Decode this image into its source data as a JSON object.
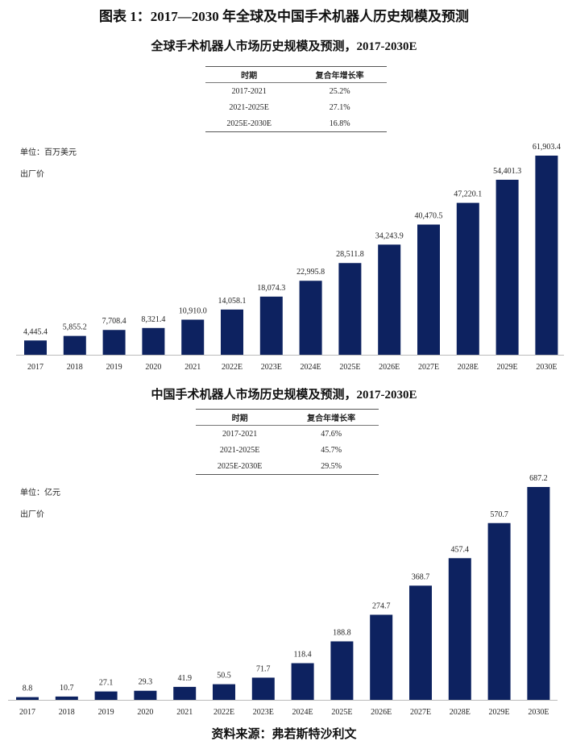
{
  "title": "图表 1：2017—2030 年全球及中国手术机器人历史规模及预测",
  "source": "资料来源：弗若斯特沙利文",
  "bar_color": "#0d2260",
  "chart_data": [
    {
      "type": "bar",
      "title": "全球手术机器人市场历史规模及预测，2017-2030E",
      "unit": "单位：百万美元",
      "price_basis": "出厂价",
      "cagr_table": {
        "headers": [
          "时期",
          "复合年增长率"
        ],
        "rows": [
          [
            "2017-2021",
            "25.2%"
          ],
          [
            "2021-2025E",
            "27.1%"
          ],
          [
            "2025E-2030E",
            "16.8%"
          ]
        ]
      },
      "categories": [
        "2017",
        "2018",
        "2019",
        "2020",
        "2021",
        "2022E",
        "2023E",
        "2024E",
        "2025E",
        "2026E",
        "2027E",
        "2028E",
        "2029E",
        "2030E"
      ],
      "values": [
        4445.4,
        5855.2,
        7708.4,
        8321.4,
        10910.0,
        14058.1,
        18074.3,
        22995.8,
        28511.8,
        34243.9,
        40470.5,
        47220.1,
        54401.3,
        61903.4
      ],
      "labels": [
        "4,445.4",
        "5,855.2",
        "7,708.4",
        "8,321.4",
        "10,910.0",
        "14,058.1",
        "18,074.3",
        "22,995.8",
        "28,511.8",
        "34,243.9",
        "40,470.5",
        "47,220.1",
        "54,401.3",
        "61,903.4"
      ],
      "ylim": [
        0,
        62000
      ]
    },
    {
      "type": "bar",
      "title": "中国手术机器人市场历史规模及预测，2017-2030E",
      "unit": "单位：亿元",
      "price_basis": "出厂价",
      "cagr_table": {
        "headers": [
          "时期",
          "复合年增长率"
        ],
        "rows": [
          [
            "2017-2021",
            "47.6%"
          ],
          [
            "2021-2025E",
            "45.7%"
          ],
          [
            "2025E-2030E",
            "29.5%"
          ]
        ]
      },
      "categories": [
        "2017",
        "2018",
        "2019",
        "2020",
        "2021",
        "2022E",
        "2023E",
        "2024E",
        "2025E",
        "2026E",
        "2027E",
        "2028E",
        "2029E",
        "2030E"
      ],
      "values": [
        8.8,
        10.7,
        27.1,
        29.3,
        41.9,
        50.5,
        71.7,
        118.4,
        188.8,
        274.7,
        368.7,
        457.4,
        570.7,
        687.2
      ],
      "labels": [
        "8.8",
        "10.7",
        "27.1",
        "29.3",
        "41.9",
        "50.5",
        "71.7",
        "118.4",
        "188.8",
        "274.7",
        "368.7",
        "457.4",
        "570.7",
        "687.2"
      ],
      "ylim": [
        0,
        690
      ]
    }
  ]
}
